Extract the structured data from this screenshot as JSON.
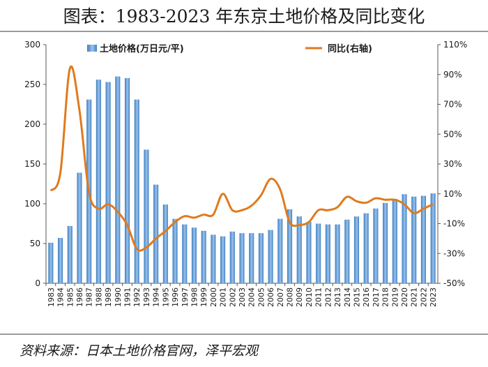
{
  "title": "图表：1983-2023 年东京土地价格及同比变化",
  "source": "资料来源：日本土地价格官网，泽平宏观",
  "colors": {
    "bar": "#3d7fc2",
    "bar_light": "#9cc3ea",
    "line": "#e07a1c",
    "text": "#1a1a1a"
  },
  "chart_data": {
    "type": "bar+line",
    "categories": [
      "1983",
      "1984",
      "1985",
      "1986",
      "1987",
      "1988",
      "1989",
      "1990",
      "1991",
      "1992",
      "1993",
      "1994",
      "1995",
      "1996",
      "1997",
      "1998",
      "1999",
      "2000",
      "2001",
      "2002",
      "2003",
      "2004",
      "2005",
      "2006",
      "2007",
      "2008",
      "2009",
      "2010",
      "2011",
      "2012",
      "2013",
      "2014",
      "2015",
      "2016",
      "2017",
      "2018",
      "2019",
      "2020",
      "2021",
      "2022",
      "2023"
    ],
    "series": [
      {
        "name": "土地价格(万日元/平)",
        "type": "bar",
        "axis": "left",
        "values": [
          51,
          57,
          72,
          139,
          231,
          256,
          253,
          260,
          258,
          231,
          168,
          124,
          99,
          81,
          74,
          70,
          66,
          61,
          59,
          65,
          63,
          63,
          63,
          67,
          81,
          93,
          84,
          77,
          75,
          74,
          74,
          80,
          84,
          88,
          94,
          101,
          106,
          112,
          109,
          110,
          113
        ]
      },
      {
        "name": "同比(右轴)",
        "type": "line",
        "axis": "right",
        "values": [
          12,
          24,
          94,
          66,
          11,
          0,
          3,
          -2,
          -11,
          -27,
          -26,
          -20,
          -15,
          -9,
          -5,
          -6,
          -4,
          -4,
          10,
          -1,
          -1,
          2,
          9,
          20,
          13,
          -9,
          -11,
          -9,
          -1,
          -1,
          1,
          8,
          5,
          4,
          7,
          6,
          6,
          3,
          -3,
          0,
          3
        ]
      }
    ],
    "y_left": {
      "min": 0,
      "max": 300,
      "ticks": [
        "0",
        "50",
        "100",
        "150",
        "200",
        "250",
        "300"
      ]
    },
    "y_right": {
      "min": -50,
      "max": 110,
      "ticks": [
        "-50%",
        "-30%",
        "-10%",
        "10%",
        "30%",
        "50%",
        "70%",
        "90%",
        "110%"
      ]
    },
    "legend": {
      "position": "top",
      "bar_label": "土地价格(万日元/平)",
      "line_label": "同比(右轴)"
    }
  }
}
